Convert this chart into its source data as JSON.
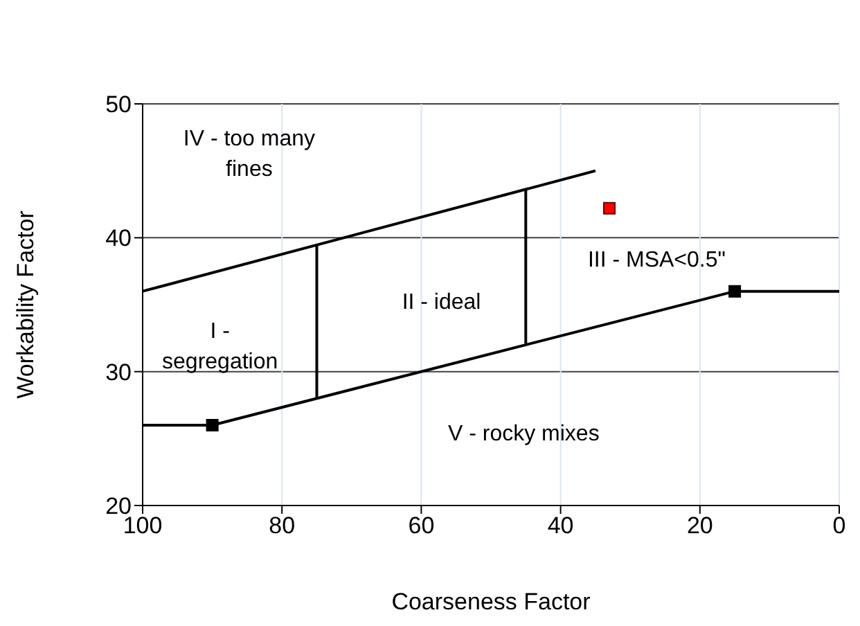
{
  "chart_data": {
    "type": "line",
    "xlabel": "Coarseness Factor",
    "ylabel": "Workability Factor",
    "xlim": [
      100,
      0
    ],
    "xticks": [
      100,
      80,
      60,
      40,
      20,
      0
    ],
    "ylim": [
      20,
      50
    ],
    "yticks": [
      20,
      30,
      40,
      50
    ],
    "grid": true,
    "line_style": "solid",
    "series": [
      {
        "color": "#000000",
        "marker": "none",
        "x": [
          100,
          90,
          15,
          0
        ],
        "values": [
          26,
          26,
          36,
          36
        ]
      },
      {
        "type": "scatter",
        "color": "#000000",
        "marker": "square",
        "x": [
          90,
          15
        ],
        "values": [
          26,
          36
        ]
      },
      {
        "color": "#000000",
        "marker": "none",
        "x": [
          100,
          35
        ],
        "values": [
          36,
          45
        ]
      },
      {
        "color": "#000000",
        "marker": "none",
        "x": [
          75,
          75
        ],
        "values": [
          28,
          39.4
        ]
      },
      {
        "color": "#000000",
        "marker": "none",
        "x": [
          45,
          45
        ],
        "values": [
          32.1,
          43.6
        ]
      },
      {
        "type": "scatter",
        "color": "#ff0000",
        "marker": "square",
        "x": [
          33
        ],
        "values": [
          42.2
        ]
      }
    ],
    "annotations": [
      "IV - too many\nfines",
      "I -\nsegregation",
      "II - ideal",
      "III -  MSA<0.5\"",
      "V - rocky mixes"
    ]
  }
}
